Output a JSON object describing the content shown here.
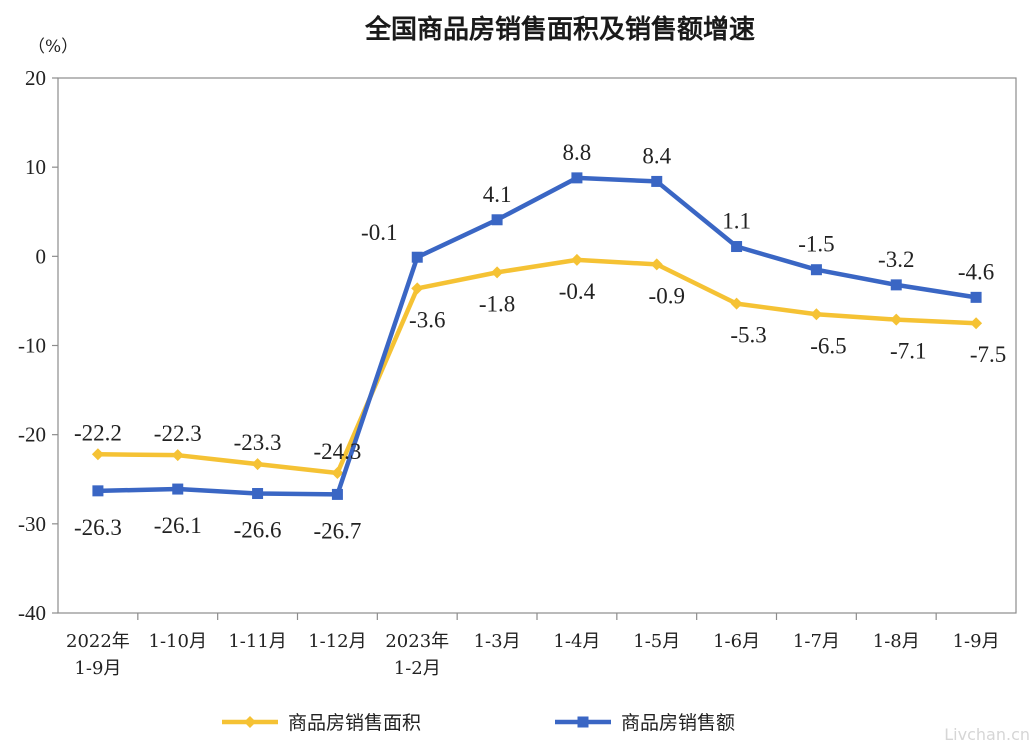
{
  "chart_data": {
    "type": "line",
    "title": "全国商品房销售面积及销售额增速",
    "unit_label": "（%）",
    "categories": [
      [
        "2022年",
        "1-9月"
      ],
      [
        "1-10月"
      ],
      [
        "1-11月"
      ],
      [
        "1-12月"
      ],
      [
        "2023年",
        "1-2月"
      ],
      [
        "1-3月"
      ],
      [
        "1-4月"
      ],
      [
        "1-5月"
      ],
      [
        "1-6月"
      ],
      [
        "1-7月"
      ],
      [
        "1-8月"
      ],
      [
        "1-9月"
      ]
    ],
    "series": [
      {
        "name": "商品房销售面积",
        "color": "#F5C234",
        "marker": "diamond",
        "values": [
          -22.2,
          -22.3,
          -23.3,
          -24.3,
          -3.6,
          -1.8,
          -0.4,
          -0.9,
          -5.3,
          -6.5,
          -7.1,
          -7.5
        ],
        "labels": [
          "-22.2",
          "-22.3",
          "-23.3",
          "-24.3",
          "-3.6",
          "-1.8",
          "-0.4",
          "-0.9",
          "-5.3",
          "-6.5",
          "-7.1",
          "-7.5"
        ]
      },
      {
        "name": "商品房销售额",
        "color": "#3A66C4",
        "marker": "square",
        "values": [
          -26.3,
          -26.1,
          -26.6,
          -26.7,
          -0.1,
          4.1,
          8.8,
          8.4,
          1.1,
          -1.5,
          -3.2,
          -4.6
        ],
        "labels": [
          "-26.3",
          "-26.1",
          "-26.6",
          "-26.7",
          "-0.1",
          "4.1",
          "8.8",
          "8.4",
          "1.1",
          "-1.5",
          "-3.2",
          "-4.6"
        ]
      }
    ],
    "ylim": [
      -40,
      20
    ],
    "yticks": [
      "20",
      "10",
      "0",
      "-10",
      "-20",
      "-30",
      "-40"
    ],
    "ytick_values": [
      20,
      10,
      0,
      -10,
      -20,
      -30,
      -40
    ],
    "grid": false,
    "legend_position": "bottom"
  },
  "watermark": "Livchan.cn"
}
